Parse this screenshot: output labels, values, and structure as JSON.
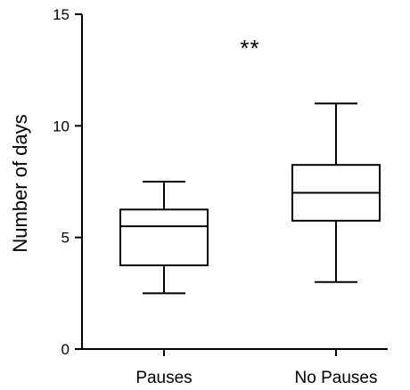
{
  "chart_data": {
    "type": "box",
    "title": "",
    "xlabel": "",
    "ylabel": "Number of days",
    "ylim": [
      0,
      15
    ],
    "yticks": [
      0,
      5,
      10,
      15
    ],
    "grid": false,
    "categories": [
      "Pauses",
      "No Pauses"
    ],
    "boxes": [
      {
        "category": "Pauses",
        "whisker_low": 2.5,
        "q1": 3.75,
        "median": 5.5,
        "q3": 6.25,
        "whisker_high": 7.5
      },
      {
        "category": "No Pauses",
        "whisker_low": 3.0,
        "q1": 5.75,
        "median": 7.0,
        "q3": 8.25,
        "whisker_high": 11.0
      }
    ],
    "annotations": [
      {
        "text": "**",
        "x_between": [
          "Pauses",
          "No Pauses"
        ],
        "y": 13.6
      }
    ]
  }
}
